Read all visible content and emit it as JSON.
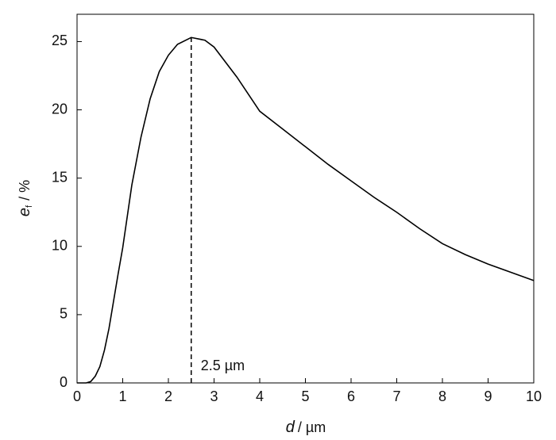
{
  "chart_data": {
    "type": "line",
    "x": [
      0,
      0.2,
      0.3,
      0.4,
      0.5,
      0.6,
      0.7,
      0.8,
      0.9,
      1.0,
      1.2,
      1.4,
      1.6,
      1.8,
      2.0,
      2.2,
      2.5,
      2.8,
      3.0,
      3.5,
      4.0,
      4.5,
      5.0,
      5.5,
      6.0,
      6.5,
      7.0,
      7.5,
      8.0,
      8.5,
      9.0,
      9.5,
      10.0
    ],
    "series": [
      {
        "color": "#000000",
        "values": [
          0,
          0,
          0.1,
          0.5,
          1.2,
          2.4,
          4.0,
          6.0,
          8.0,
          9.9,
          14.5,
          18.0,
          20.8,
          22.8,
          24.0,
          24.8,
          25.3,
          25.1,
          24.6,
          22.4,
          19.9,
          18.6,
          17.3,
          16.0,
          14.8,
          13.6,
          12.5,
          11.3,
          10.2,
          9.4,
          8.7,
          8.1,
          7.5
        ]
      }
    ],
    "xlim": [
      0,
      10
    ],
    "xticks": [
      0,
      1,
      2,
      3,
      4,
      5,
      6,
      7,
      8,
      9,
      10
    ],
    "ylim": [
      0,
      27
    ],
    "yticks": [
      0,
      5,
      10,
      15,
      20,
      25
    ],
    "xlabel": {
      "symbol": "d",
      "unit": "/ µm"
    },
    "ylabel": {
      "symbol": "e",
      "subscript": "f",
      "unit": "/ %"
    },
    "annotation": {
      "text": "2.5 µm",
      "x": 2.5,
      "y": 25.3
    }
  }
}
